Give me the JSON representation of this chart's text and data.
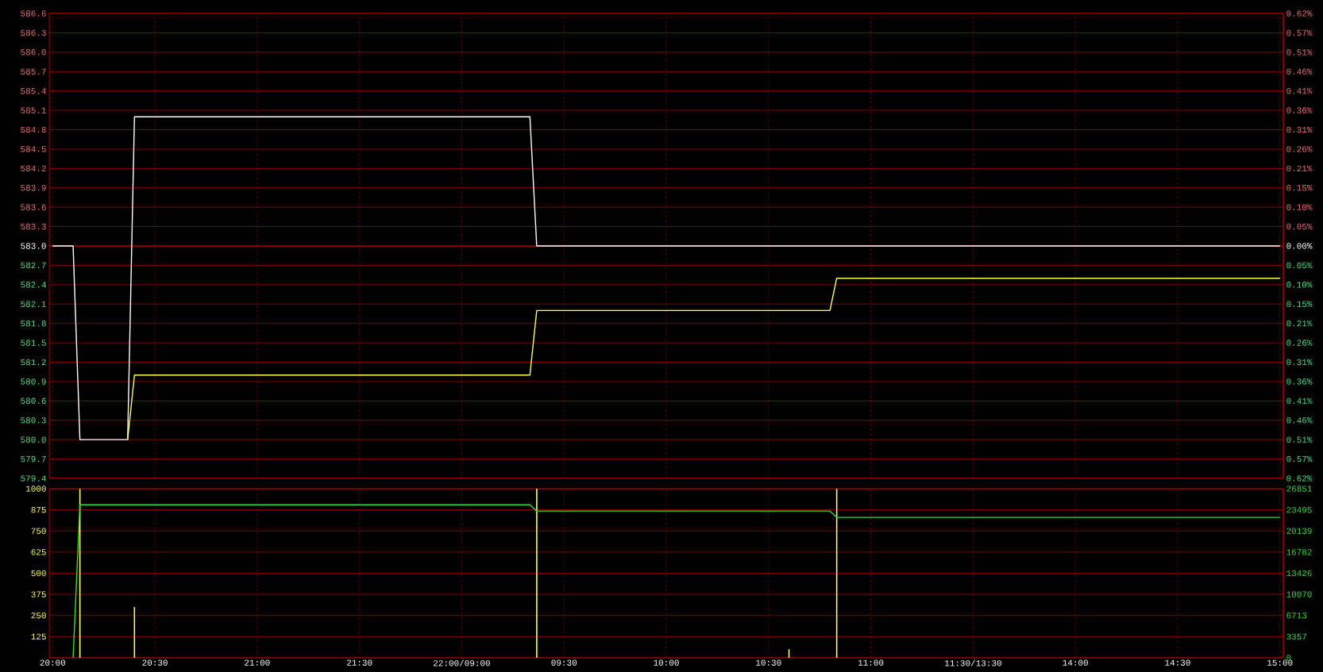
{
  "chart_data": [
    {
      "type": "line",
      "tick_labels": "y",
      "categories": [
        null,
        null,
        null,
        null,
        null,
        null,
        null,
        null,
        null,
        null,
        null,
        null,
        null,
        null,
        null,
        null,
        null,
        null,
        null,
        null,
        null,
        null,
        null,
        null,
        null,
        null,
        null,
        null,
        null,
        null,
        null,
        null,
        null,
        null,
        null,
        null,
        null,
        null,
        null,
        null,
        null,
        null,
        null,
        null,
        null,
        null,
        null,
        null,
        null,
        null,
        null,
        null,
        null,
        null,
        null,
        null,
        null,
        null,
        null,
        null,
        null,
        null,
        null,
        null,
        null,
        null,
        null,
        null,
        null,
        null,
        null,
        null,
        null,
        null,
        null,
        null,
        null,
        null,
        null,
        null,
        null,
        null,
        null,
        null,
        null,
        null,
        null,
        null,
        null,
        null,
        null,
        null,
        null,
        null,
        null,
        null,
        null,
        null,
        null,
        null,
        null,
        null,
        null,
        null,
        null,
        null,
        null,
        null,
        null,
        null,
        null,
        null,
        null,
        null,
        null,
        null,
        null,
        null,
        null,
        null,
        null,
        null,
        null,
        null,
        null,
        null,
        null,
        null,
        null,
        null,
        null,
        null,
        null,
        null,
        null,
        null,
        null,
        null,
        null,
        null,
        null,
        null,
        null,
        null,
        null,
        null,
        null,
        null,
        null,
        null,
        null,
        null,
        null,
        null,
        null,
        null,
        null,
        null,
        null,
        null,
        null,
        null,
        null,
        null,
        null,
        null,
        null,
        null,
        null,
        null,
        null,
        null,
        null,
        null,
        null,
        null,
        null,
        null,
        null,
        null,
        null
      ],
      "ylim": [
        579.4,
        586.6
      ],
      "yticks": [
        579.4,
        579.7,
        {
          "value": 580.0,
          "label": "580.0"
        },
        580.3,
        580.6,
        580.9,
        581.2,
        581.5,
        581.8,
        582.1,
        582.4,
        582.7,
        {
          "value": 583.0,
          "label": "583.0"
        },
        583.3,
        583.6,
        583.9,
        584.2,
        584.5,
        584.8,
        585.1,
        585.4,
        585.7,
        {
          "value": 586.0,
          "label": "586.0"
        },
        586.3,
        586.6
      ],
      "y2lim": [
        -0.6175,
        0.6175
      ],
      "y2ticks": [
        {
          "value": -0.6175,
          "label": "0.62%"
        },
        {
          "value": -0.566,
          "label": "0.57%"
        },
        {
          "value": -0.5146,
          "label": "0.51%"
        },
        {
          "value": -0.4631,
          "label": "0.46%"
        },
        {
          "value": -0.4117,
          "label": "0.41%"
        },
        {
          "value": -0.3602,
          "label": "0.36%"
        },
        {
          "value": -0.3087,
          "label": "0.31%"
        },
        {
          "value": -0.2573,
          "label": "0.26%"
        },
        {
          "value": -0.2058,
          "label": "0.21%"
        },
        {
          "value": -0.1544,
          "label": "0.15%"
        },
        {
          "value": -0.1029,
          "label": "0.10%"
        },
        {
          "value": -0.0515,
          "label": "0.05%"
        },
        {
          "value": 0,
          "label": "0.00%"
        },
        {
          "value": 0.0515,
          "label": "0.05%"
        },
        {
          "value": 0.1029,
          "label": "0.10%"
        },
        {
          "value": 0.1544,
          "label": "0.15%"
        },
        {
          "value": 0.2058,
          "label": "0.21%"
        },
        {
          "value": 0.2573,
          "label": "0.26%"
        },
        {
          "value": 0.3087,
          "label": "0.31%"
        },
        {
          "value": 0.3602,
          "label": "0.36%"
        },
        {
          "value": 0.4117,
          "label": "0.41%"
        },
        {
          "value": 0.4631,
          "label": "0.46%"
        },
        {
          "value": 0.5146,
          "label": "0.51%"
        },
        {
          "value": 0.566,
          "label": "0.57%"
        },
        {
          "value": 0.6175,
          "label": "0.62%"
        }
      ],
      "grid": true,
      "ref_lines": [
        {
          "axis": "y",
          "value": 583.0,
          "color": "#d00000"
        }
      ],
      "series": [
        {
          "color": "#ffffff",
          "values": [
            583,
            583,
            583,
            583,
            580,
            580,
            580,
            580,
            580,
            580,
            580,
            580,
            585,
            585,
            585,
            585,
            585,
            585,
            585,
            585,
            585,
            585,
            585,
            585,
            585,
            585,
            585,
            585,
            585,
            585,
            585,
            585,
            585,
            585,
            585,
            585,
            585,
            585,
            585,
            585,
            585,
            585,
            585,
            585,
            585,
            585,
            585,
            585,
            585,
            585,
            585,
            585,
            585,
            585,
            585,
            585,
            585,
            585,
            585,
            585,
            585,
            585,
            585,
            585,
            585,
            585,
            585,
            585,
            585,
            585,
            585,
            583,
            583,
            583,
            583,
            583,
            583,
            583,
            583,
            583,
            583,
            583,
            583,
            583,
            583,
            583,
            583,
            583,
            583,
            583,
            583,
            583,
            583,
            583,
            583,
            583,
            583,
            583,
            583,
            583,
            583,
            583,
            583,
            583,
            583,
            583,
            583,
            583,
            583,
            583,
            583,
            583,
            583,
            583,
            583,
            583,
            583,
            583,
            583,
            583,
            583,
            583,
            583,
            583,
            583,
            583,
            583,
            583,
            583,
            583,
            583,
            583,
            583,
            583,
            583,
            583,
            583,
            583,
            583,
            583,
            583,
            583,
            583,
            583,
            583,
            583,
            583,
            583,
            583,
            583,
            583,
            583,
            583,
            583,
            583,
            583,
            583,
            583,
            583,
            583,
            583,
            583,
            583,
            583,
            583,
            583,
            583,
            583,
            583,
            583,
            583,
            583,
            583,
            583,
            583,
            583,
            583,
            583,
            583,
            583,
            583
          ]
        },
        {
          "color": "#ffff66",
          "values": [
            null,
            null,
            null,
            null,
            null,
            null,
            null,
            null,
            null,
            null,
            null,
            580,
            581,
            581,
            581,
            581,
            581,
            581,
            581,
            581,
            581,
            581,
            581,
            581,
            581,
            581,
            581,
            581,
            581,
            581,
            581,
            581,
            581,
            581,
            581,
            581,
            581,
            581,
            581,
            581,
            581,
            581,
            581,
            581,
            581,
            581,
            581,
            581,
            581,
            581,
            581,
            581,
            581,
            581,
            581,
            581,
            581,
            581,
            581,
            581,
            581,
            581,
            581,
            581,
            581,
            581,
            581,
            581,
            581,
            581,
            581,
            582,
            582,
            582,
            582,
            582,
            582,
            582,
            582,
            582,
            582,
            582,
            582,
            582,
            582,
            582,
            582,
            582,
            582,
            582,
            582,
            582,
            582,
            582,
            582,
            582,
            582,
            582,
            582,
            582,
            582,
            582,
            582,
            582,
            582,
            582,
            582,
            582,
            582,
            582,
            582,
            582,
            582,
            582,
            582,
            582.5,
            582.5,
            582.5,
            582.5,
            582.5,
            582.5,
            582.5,
            582.5,
            582.5,
            582.5,
            582.5,
            582.5,
            582.5,
            582.5,
            582.5,
            582.5,
            582.5,
            582.5,
            582.5,
            582.5,
            582.5,
            582.5,
            582.5,
            582.5,
            582.5,
            582.5,
            582.5,
            582.5,
            582.5,
            582.5,
            582.5,
            582.5,
            582.5,
            582.5,
            582.5,
            582.5,
            582.5,
            582.5,
            582.5,
            582.5,
            582.5,
            582.5,
            582.5,
            582.5,
            582.5,
            582.5,
            582.5,
            582.5,
            582.5,
            582.5,
            582.5,
            582.5,
            582.5,
            582.5,
            582.5,
            582.5,
            582.5,
            582.5,
            582.5,
            582.5,
            582.5,
            582.5,
            582.5,
            582.5,
            582.5,
            582.5
          ]
        }
      ]
    },
    {
      "type": "bar",
      "categories": [
        "20:00",
        null,
        null,
        null,
        null,
        null,
        null,
        null,
        null,
        null,
        null,
        null,
        null,
        null,
        null,
        "20:30",
        null,
        null,
        null,
        null,
        null,
        null,
        null,
        null,
        null,
        null,
        null,
        null,
        null,
        null,
        "21:00",
        null,
        null,
        null,
        null,
        null,
        null,
        null,
        null,
        null,
        null,
        null,
        null,
        null,
        null,
        "21:30",
        null,
        null,
        null,
        null,
        null,
        null,
        null,
        null,
        null,
        null,
        null,
        null,
        null,
        null,
        "22:00/09:00",
        null,
        null,
        null,
        null,
        null,
        null,
        null,
        null,
        null,
        null,
        null,
        null,
        null,
        null,
        "09:30",
        null,
        null,
        null,
        null,
        null,
        null,
        null,
        null,
        null,
        null,
        null,
        null,
        null,
        null,
        "10:00",
        null,
        null,
        null,
        null,
        null,
        null,
        null,
        null,
        null,
        null,
        null,
        null,
        null,
        null,
        "10:30",
        null,
        null,
        null,
        null,
        null,
        null,
        null,
        null,
        null,
        null,
        null,
        null,
        null,
        null,
        "11:00",
        null,
        null,
        null,
        null,
        null,
        null,
        null,
        null,
        null,
        null,
        null,
        null,
        null,
        null,
        "11:30/13:30",
        null,
        null,
        null,
        null,
        null,
        null,
        null,
        null,
        null,
        null,
        null,
        null,
        null,
        null,
        "14:00",
        null,
        null,
        null,
        null,
        null,
        null,
        null,
        null,
        null,
        null,
        null,
        null,
        null,
        null,
        "14:30",
        null,
        null,
        null,
        null,
        null,
        null,
        null,
        null,
        null,
        null,
        null,
        null,
        null,
        null,
        "15:00"
      ],
      "ylim": [
        0,
        1000
      ],
      "yticks": [
        {
          "value": 0,
          "label": null
        },
        125,
        250,
        375,
        500,
        625,
        750,
        875,
        1000
      ],
      "y2lim": [
        0,
        26851
      ],
      "y2ticks": [
        0,
        3357,
        6713,
        10070,
        13426,
        16782,
        20139,
        23495,
        26851
      ],
      "grid": true,
      "series": [
        {
          "type": "bar",
          "color": "#ffff66",
          "values": [
            null,
            null,
            null,
            null,
            1000,
            null,
            null,
            null,
            null,
            null,
            null,
            null,
            300,
            null,
            null,
            null,
            null,
            null,
            null,
            null,
            null,
            null,
            null,
            null,
            null,
            null,
            null,
            null,
            null,
            null,
            null,
            null,
            null,
            null,
            null,
            null,
            null,
            null,
            null,
            null,
            null,
            null,
            null,
            null,
            null,
            null,
            null,
            null,
            null,
            null,
            null,
            null,
            null,
            null,
            null,
            null,
            null,
            null,
            null,
            null,
            null,
            null,
            null,
            null,
            null,
            null,
            null,
            null,
            null,
            null,
            null,
            1000,
            null,
            null,
            null,
            null,
            null,
            null,
            null,
            null,
            null,
            null,
            null,
            null,
            null,
            null,
            null,
            null,
            null,
            null,
            null,
            null,
            null,
            null,
            null,
            null,
            null,
            null,
            null,
            null,
            null,
            null,
            null,
            null,
            null,
            null,
            null,
            null,
            50,
            null,
            null,
            null,
            null,
            null,
            null,
            1000,
            null,
            null,
            null,
            null,
            null,
            null,
            null,
            null,
            null,
            null,
            null,
            null,
            null,
            null,
            null,
            null,
            null,
            null,
            null,
            null,
            null,
            null,
            null,
            null,
            null,
            null,
            null,
            null,
            null,
            null,
            null,
            null,
            null,
            null,
            null,
            null,
            null,
            null,
            null,
            null,
            null,
            null,
            null,
            null,
            null,
            null,
            null,
            null,
            null,
            null,
            null,
            null,
            null,
            null,
            null,
            null,
            null,
            null,
            null,
            null,
            null,
            null,
            null,
            null,
            null
          ]
        },
        {
          "type": "line",
          "axis": "y2",
          "color": "#33dd33",
          "values": [
            null,
            null,
            null,
            0,
            24300,
            24300,
            24300,
            24300,
            24300,
            24300,
            24300,
            24300,
            24300,
            24300,
            24300,
            24300,
            24300,
            24300,
            24300,
            24300,
            24300,
            24300,
            24300,
            24300,
            24300,
            24300,
            24300,
            24300,
            24300,
            24300,
            24300,
            24300,
            24300,
            24300,
            24300,
            24300,
            24300,
            24300,
            24300,
            24300,
            24300,
            24300,
            24300,
            24300,
            24300,
            24300,
            24300,
            24300,
            24300,
            24300,
            24300,
            24300,
            24300,
            24300,
            24300,
            24300,
            24300,
            24300,
            24300,
            24300,
            24300,
            24300,
            24300,
            24300,
            24300,
            24300,
            24300,
            24300,
            24300,
            24300,
            24300,
            23300,
            23300,
            23300,
            23300,
            23300,
            23300,
            23300,
            23300,
            23300,
            23300,
            23300,
            23300,
            23300,
            23300,
            23300,
            23300,
            23300,
            23300,
            23300,
            23300,
            23300,
            23300,
            23300,
            23300,
            23300,
            23300,
            23300,
            23300,
            23300,
            23300,
            23300,
            23300,
            23300,
            23300,
            23300,
            23300,
            23300,
            23300,
            23300,
            23300,
            23300,
            23300,
            23300,
            23300,
            22300,
            22300,
            22300,
            22300,
            22300,
            22300,
            22300,
            22300,
            22300,
            22300,
            22300,
            22300,
            22300,
            22300,
            22300,
            22300,
            22300,
            22300,
            22300,
            22300,
            22300,
            22300,
            22300,
            22300,
            22300,
            22300,
            22300,
            22300,
            22300,
            22300,
            22300,
            22300,
            22300,
            22300,
            22300,
            22300,
            22300,
            22300,
            22300,
            22300,
            22300,
            22300,
            22300,
            22300,
            22300,
            22300,
            22300,
            22300,
            22300,
            22300,
            22300,
            22300,
            22300,
            22300,
            22300,
            22300,
            22300,
            22300,
            22300,
            22300,
            22300,
            22300,
            22300,
            22300,
            22300,
            22300
          ]
        }
      ]
    }
  ]
}
